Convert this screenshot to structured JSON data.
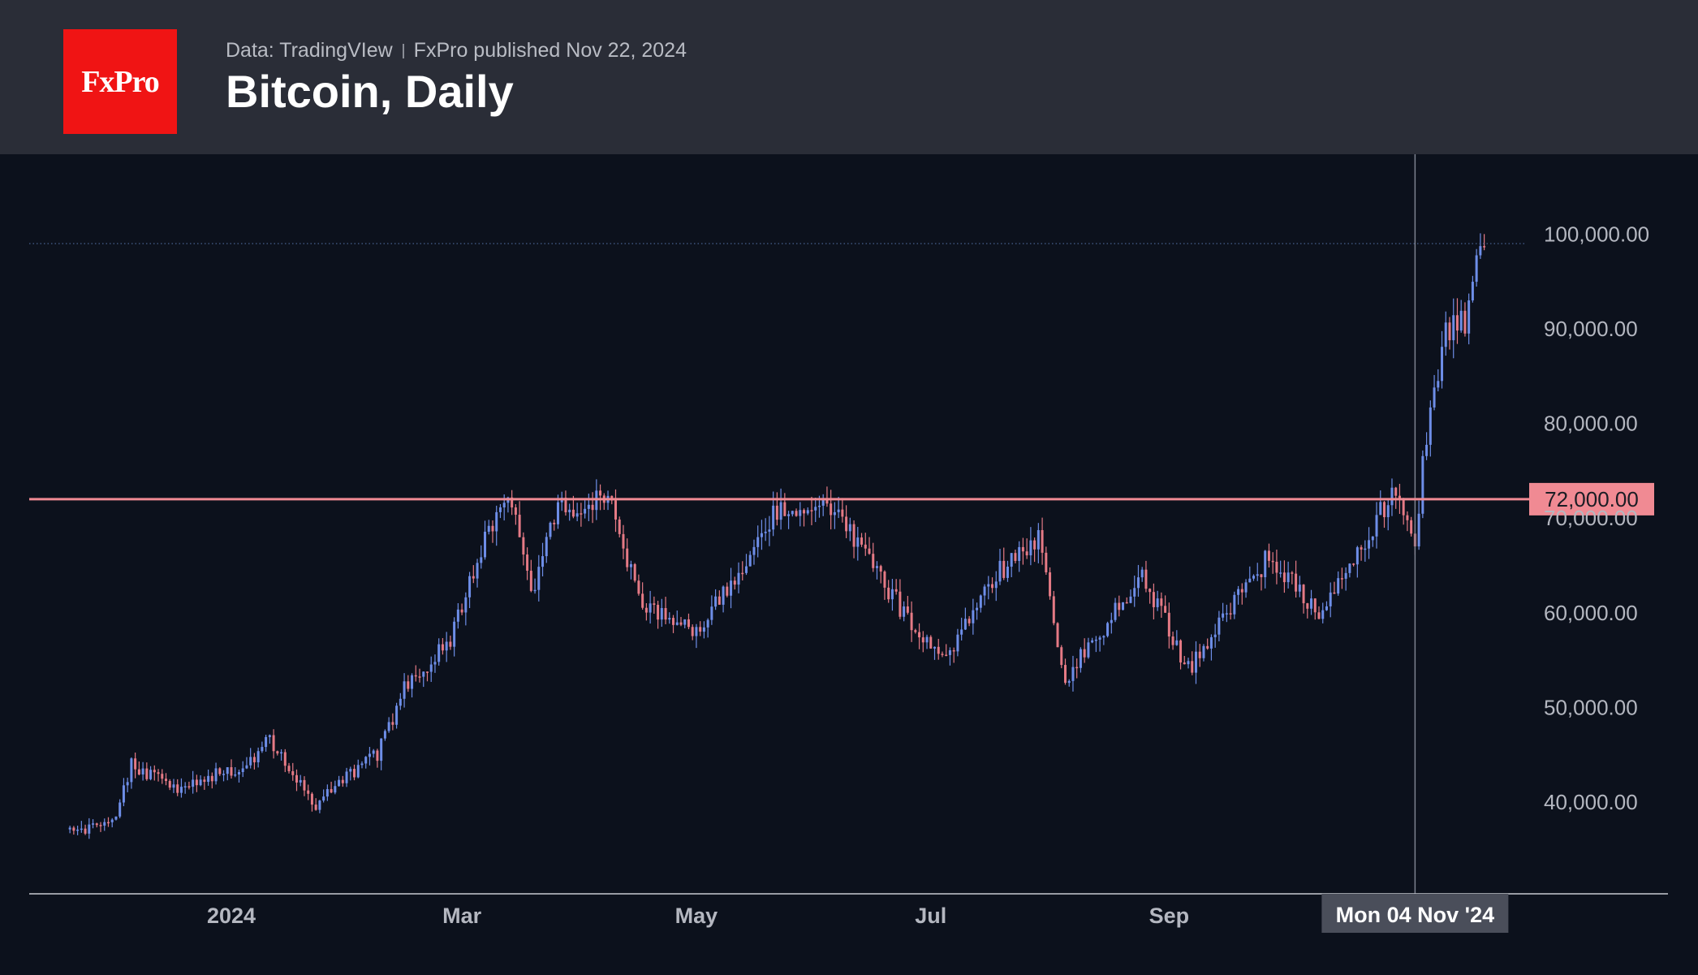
{
  "header": {
    "logo_text": "FxPro",
    "source": "Data: TradingVIew",
    "published": "FxPro published Nov 22, 2024",
    "title": "Bitcoin, Daily"
  },
  "colors": {
    "background": "#0c111c",
    "header_bg": "#2a2d37",
    "brand_red": "#f01414",
    "bull": "#6e8ee8",
    "bear": "#e57a85",
    "resistance": "#f08a93",
    "axis_text": "#b4b7c0"
  },
  "chart_data": {
    "type": "candlestick",
    "title": "Bitcoin, Daily",
    "x_range": [
      "2023-11-20",
      "2024-11-22"
    ],
    "x_ticks": [
      {
        "date": "2024-01-01",
        "label": "2024"
      },
      {
        "date": "2024-03-01",
        "label": "Mar"
      },
      {
        "date": "2024-05-01",
        "label": "May"
      },
      {
        "date": "2024-07-01",
        "label": "Jul"
      },
      {
        "date": "2024-09-01",
        "label": "Sep"
      }
    ],
    "y_ticks": [
      100000,
      90000,
      80000,
      70000,
      60000,
      50000,
      40000
    ],
    "y_tick_labels": [
      "100,000.00",
      "90,000.00",
      "80,000.00",
      "70,000.00",
      "60,000.00",
      "50,000.00",
      "40,000.00"
    ],
    "ylim": [
      30000,
      110000
    ],
    "resistance": {
      "value": 72000,
      "label": "72,000.00"
    },
    "crosshair": {
      "date": "2024-11-04",
      "label": "Mon 04 Nov '24"
    },
    "last_price_dotted": 99000,
    "path_closes": [
      {
        "date": "2023-11-20",
        "close": 37000
      },
      {
        "date": "2023-12-01",
        "close": 37500
      },
      {
        "date": "2023-12-06",
        "close": 44000
      },
      {
        "date": "2023-12-18",
        "close": 41500
      },
      {
        "date": "2023-12-28",
        "close": 43000
      },
      {
        "date": "2024-01-05",
        "close": 44000
      },
      {
        "date": "2024-01-11",
        "close": 46500
      },
      {
        "date": "2024-01-23",
        "close": 39500
      },
      {
        "date": "2024-02-01",
        "close": 43000
      },
      {
        "date": "2024-02-08",
        "close": 45000
      },
      {
        "date": "2024-02-15",
        "close": 52000
      },
      {
        "date": "2024-02-27",
        "close": 57000
      },
      {
        "date": "2024-03-05",
        "close": 66000
      },
      {
        "date": "2024-03-13",
        "close": 73000
      },
      {
        "date": "2024-03-19",
        "close": 62000
      },
      {
        "date": "2024-03-26",
        "close": 71000
      },
      {
        "date": "2024-04-08",
        "close": 72000
      },
      {
        "date": "2024-04-17",
        "close": 61000
      },
      {
        "date": "2024-04-30",
        "close": 58000
      },
      {
        "date": "2024-05-15",
        "close": 65000
      },
      {
        "date": "2024-05-21",
        "close": 71000
      },
      {
        "date": "2024-06-05",
        "close": 71500
      },
      {
        "date": "2024-06-24",
        "close": 60000
      },
      {
        "date": "2024-07-05",
        "close": 55000
      },
      {
        "date": "2024-07-15",
        "close": 63000
      },
      {
        "date": "2024-07-29",
        "close": 68000
      },
      {
        "date": "2024-08-05",
        "close": 53000
      },
      {
        "date": "2024-08-25",
        "close": 64000
      },
      {
        "date": "2024-09-06",
        "close": 54000
      },
      {
        "date": "2024-09-27",
        "close": 66000
      },
      {
        "date": "2024-10-10",
        "close": 60000
      },
      {
        "date": "2024-10-29",
        "close": 72500
      },
      {
        "date": "2024-11-04",
        "close": 67500
      },
      {
        "date": "2024-11-06",
        "close": 75500
      },
      {
        "date": "2024-11-11",
        "close": 88500
      },
      {
        "date": "2024-11-13",
        "close": 90000
      },
      {
        "date": "2024-11-17",
        "close": 90500
      },
      {
        "date": "2024-11-21",
        "close": 98000
      },
      {
        "date": "2024-11-22",
        "close": 99000
      }
    ]
  }
}
